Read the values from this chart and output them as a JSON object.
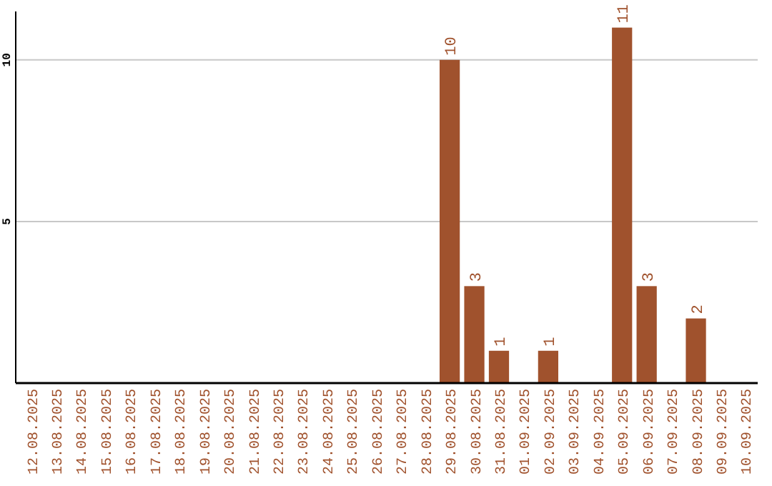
{
  "chart_data": {
    "type": "bar",
    "categories": [
      "12.08.2025",
      "13.08.2025",
      "14.08.2025",
      "15.08.2025",
      "16.08.2025",
      "17.08.2025",
      "18.08.2025",
      "19.08.2025",
      "20.08.2025",
      "21.08.2025",
      "22.08.2025",
      "23.08.2025",
      "24.08.2025",
      "25.08.2025",
      "26.08.2025",
      "27.08.2025",
      "28.08.2025",
      "29.08.2025",
      "30.08.2025",
      "31.08.2025",
      "01.09.2025",
      "02.09.2025",
      "03.09.2025",
      "04.09.2025",
      "05.09.2025",
      "06.09.2025",
      "07.09.2025",
      "08.09.2025",
      "09.09.2025",
      "10.09.2025"
    ],
    "values": [
      0,
      0,
      0,
      0,
      0,
      0,
      0,
      0,
      0,
      0,
      0,
      0,
      0,
      0,
      0,
      0,
      0,
      10,
      3,
      1,
      0,
      1,
      0,
      0,
      11,
      3,
      0,
      2,
      0,
      0
    ],
    "value_labels": [
      null,
      null,
      null,
      null,
      null,
      null,
      null,
      null,
      null,
      null,
      null,
      null,
      null,
      null,
      null,
      null,
      null,
      "10",
      "3",
      "1",
      null,
      "1",
      null,
      null,
      "11",
      "3",
      null,
      "2",
      null,
      null
    ],
    "color": "#a0522d",
    "ylim": [
      0,
      11.5
    ],
    "yticks": [
      5,
      10
    ],
    "grid": "y"
  }
}
